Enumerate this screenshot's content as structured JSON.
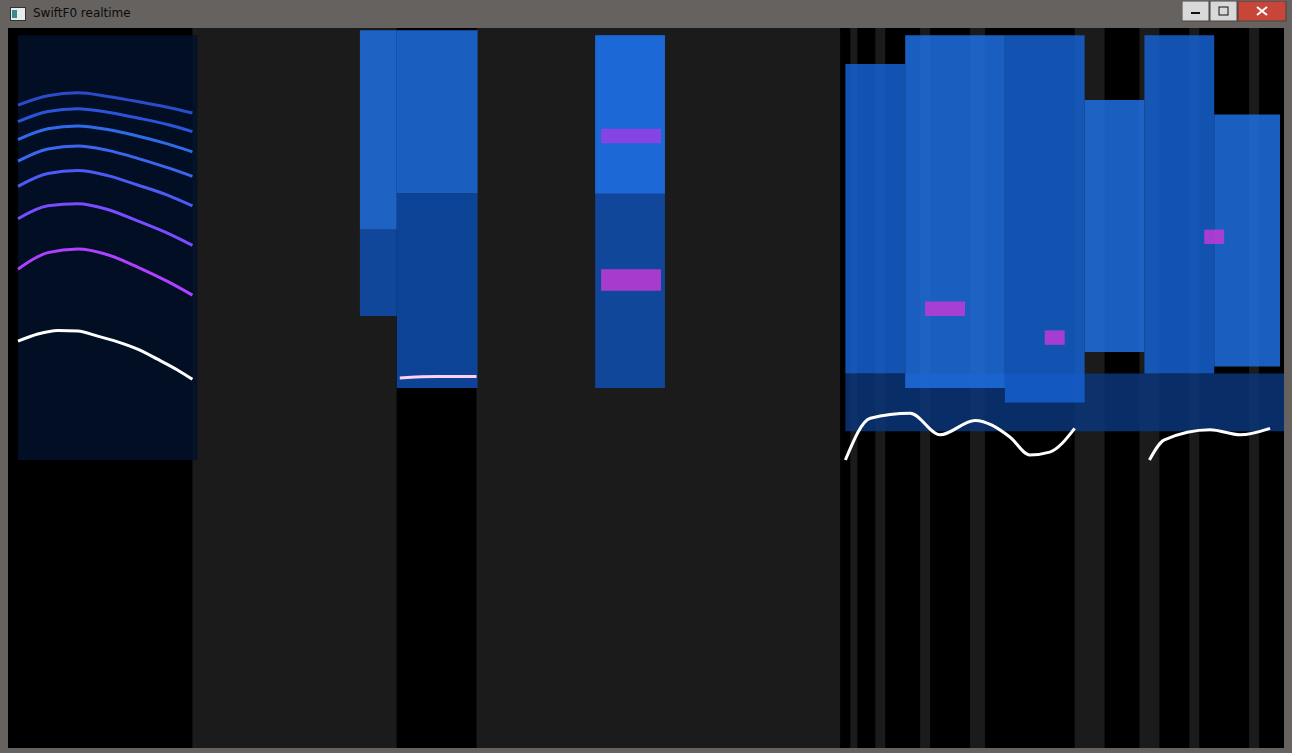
{
  "window": {
    "title": "SwiftF0 realtime"
  },
  "chart_data": {
    "type": "spectrogram",
    "tick_labels": false,
    "xlim": [
      0,
      128
    ],
    "ylim": [
      0,
      100
    ],
    "regions": [
      {
        "x": [
          0,
          18.5
        ],
        "color": "#000000"
      },
      {
        "x": [
          18.5,
          39
        ],
        "color": "#1b1b1b"
      },
      {
        "x": [
          39,
          47
        ],
        "color": "#000000"
      },
      {
        "x": [
          47,
          83.5
        ],
        "color": "#1b1b1b"
      },
      {
        "x": [
          83.5,
          128
        ],
        "color": "#000000"
      },
      {
        "x": [
          84.5,
          85.2
        ],
        "color": "#1b1b1b"
      },
      {
        "x": [
          87,
          88
        ],
        "color": "#1b1b1b"
      },
      {
        "x": [
          91.5,
          92.5
        ],
        "color": "#1b1b1b"
      },
      {
        "x": [
          96.5,
          98
        ],
        "color": "#1b1b1b"
      },
      {
        "x": [
          107,
          110
        ],
        "color": "#1b1b1b"
      },
      {
        "x": [
          113.5,
          115.5
        ],
        "color": "#1b1b1b"
      },
      {
        "x": [
          118.5,
          119.5
        ],
        "color": "#1b1b1b"
      },
      {
        "x": [
          124.5,
          125.5
        ],
        "color": "#1b1b1b"
      }
    ],
    "bands": [
      {
        "x": [
          1,
          19
        ],
        "y": [
          40,
          99
        ],
        "color": "#02102a"
      },
      {
        "x": [
          35.3,
          39
        ],
        "y": [
          60,
          72
        ],
        "color": "#0f4fb0"
      },
      {
        "x": [
          35.3,
          39
        ],
        "y": [
          72,
          99.7
        ],
        "color": "#1f6fe0"
      },
      {
        "x": [
          39,
          47.1
        ],
        "y": [
          50,
          77
        ],
        "color": "#0f4fb0"
      },
      {
        "x": [
          39,
          47.1
        ],
        "y": [
          77,
          99.7
        ],
        "color": "#1f6fe0"
      },
      {
        "x": [
          58.9,
          65.9
        ],
        "y": [
          50,
          99
        ],
        "color": "#0f4fb0"
      },
      {
        "x": [
          58.9,
          65.9
        ],
        "y": [
          77,
          99
        ],
        "color": "#1f6fe0"
      },
      {
        "x": [
          59.5,
          65.5
        ],
        "y": [
          63.5,
          66.5
        ],
        "color": "#c23ad6"
      },
      {
        "x": [
          59.5,
          65.5
        ],
        "y": [
          84,
          86
        ],
        "color": "#9a3ee8"
      },
      {
        "x": [
          84,
          128
        ],
        "y": [
          44,
          52
        ],
        "color": "#0a3578"
      },
      {
        "x": [
          84,
          90
        ],
        "y": [
          52,
          95
        ],
        "color": "#1560d0"
      },
      {
        "x": [
          90,
          100
        ],
        "y": [
          50,
          99
        ],
        "color": "#1f6fe0"
      },
      {
        "x": [
          100,
          108
        ],
        "y": [
          48,
          99
        ],
        "color": "#1560d0"
      },
      {
        "x": [
          108,
          114
        ],
        "y": [
          55,
          90
        ],
        "color": "#1f6fe0"
      },
      {
        "x": [
          114,
          121
        ],
        "y": [
          52,
          99
        ],
        "color": "#1560d0"
      },
      {
        "x": [
          121,
          127.6
        ],
        "y": [
          53,
          88
        ],
        "color": "#1f6fe0"
      },
      {
        "x": [
          92,
          96
        ],
        "y": [
          60,
          62
        ],
        "color": "#c23ad6"
      },
      {
        "x": [
          104,
          106
        ],
        "y": [
          56,
          58
        ],
        "color": "#c23ad6"
      },
      {
        "x": [
          120,
          122
        ],
        "y": [
          70,
          72
        ],
        "color": "#c23ad6"
      }
    ],
    "series": [
      {
        "color": "#2a4cc8",
        "x": [
          1,
          4,
          7,
          10,
          13,
          16,
          18.5
        ],
        "values": [
          89.3,
          90.6,
          91,
          90.5,
          89.8,
          89,
          88.2
        ]
      },
      {
        "color": "#2a55d8",
        "x": [
          1,
          4,
          7,
          10,
          13,
          16,
          18.5
        ],
        "values": [
          87,
          88.4,
          88.8,
          88.3,
          87.5,
          86.6,
          85.6
        ]
      },
      {
        "color": "#2f6be8",
        "x": [
          1,
          4,
          7,
          10,
          13,
          16,
          18.5
        ],
        "values": [
          84.5,
          86,
          86.4,
          85.9,
          85,
          83.9,
          82.8
        ]
      },
      {
        "color": "#3a66f0",
        "x": [
          1,
          4,
          7,
          10,
          13,
          16,
          18.5
        ],
        "values": [
          81.5,
          83.2,
          83.6,
          83,
          81.9,
          80.6,
          79.4
        ]
      },
      {
        "color": "#4a5cf5",
        "x": [
          1,
          4,
          7,
          10,
          13,
          16,
          18.5
        ],
        "values": [
          78,
          79.8,
          80.2,
          79.5,
          78.2,
          76.8,
          75.3
        ]
      },
      {
        "color": "#7a4cff",
        "x": [
          1,
          4,
          7,
          10,
          13,
          16,
          18.5
        ],
        "values": [
          73.5,
          75.3,
          75.6,
          74.8,
          73.2,
          71.5,
          69.8
        ]
      },
      {
        "color": "#b040ff",
        "x": [
          1,
          4,
          7,
          10,
          13,
          16,
          18.5
        ],
        "values": [
          66.5,
          68.8,
          69.3,
          68.5,
          66.8,
          64.8,
          62.9
        ]
      },
      {
        "color": "#ffffff",
        "x": [
          1,
          3,
          5,
          7,
          9,
          11,
          13,
          15,
          17,
          18.5
        ],
        "values": [
          56.5,
          57.5,
          58,
          57.9,
          57.2,
          56.4,
          55.4,
          54,
          52.5,
          51.2
        ]
      },
      {
        "color": "#ffd0f0",
        "x": [
          39.3,
          43,
          47
        ],
        "values": [
          51.4,
          51.6,
          51.6
        ]
      },
      {
        "color": "#ffffff",
        "x": [
          84,
          86.5,
          90.5,
          93.5,
          97,
          100.5,
          102.5,
          104.5,
          107,
          110,
          114.5,
          116,
          120.6,
          123.6,
          126.6
        ],
        "values": [
          40,
          45.8,
          46.5,
          43.5,
          45.5,
          43.2,
          40.7,
          41.1,
          44.4,
          null,
          40,
          42.8,
          44.2,
          43.5,
          44.4
        ]
      }
    ]
  }
}
